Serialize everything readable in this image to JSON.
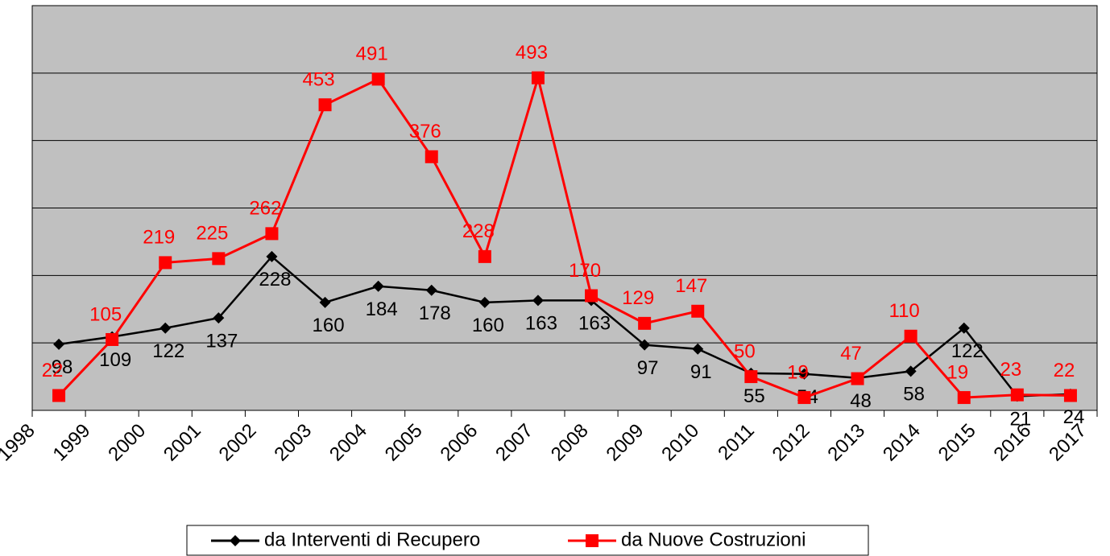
{
  "chart_data": {
    "type": "line",
    "categories": [
      "1998",
      "1999",
      "2000",
      "2001",
      "2002",
      "2003",
      "2004",
      "2005",
      "2006",
      "2007",
      "2008",
      "2009",
      "2010",
      "2011",
      "2012",
      "2013",
      "2014",
      "2015",
      "2016",
      "2017"
    ],
    "series": [
      {
        "name": "da Interventi di Recupero",
        "color": "#000000",
        "marker": "diamond",
        "values": [
          98,
          109,
          122,
          137,
          228,
          160,
          184,
          178,
          160,
          163,
          163,
          97,
          91,
          55,
          54,
          48,
          58,
          122,
          21,
          24
        ]
      },
      {
        "name": "da Nuove Costruzioni",
        "color": "#ff0000",
        "marker": "square",
        "values": [
          22,
          105,
          219,
          225,
          262,
          453,
          491,
          376,
          228,
          493,
          170,
          129,
          147,
          50,
          19,
          47,
          110,
          19,
          23,
          22
        ]
      }
    ],
    "ylim": [
      0,
      600
    ],
    "yticks": [
      0,
      100,
      200,
      300,
      400,
      500,
      600
    ],
    "grid": true,
    "legend": "bottom"
  }
}
